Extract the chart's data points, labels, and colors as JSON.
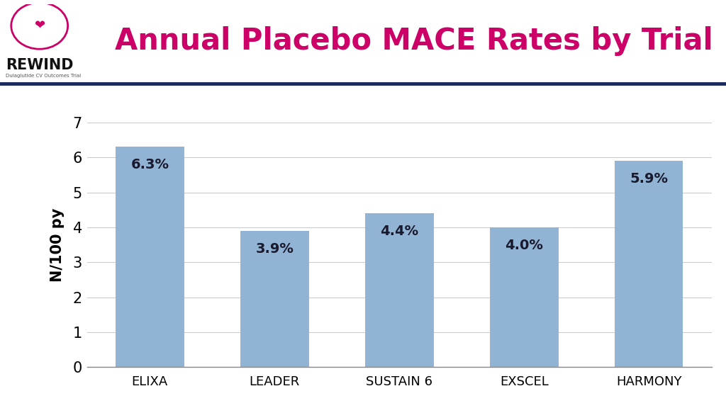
{
  "title": "Annual Placebo MACE Rates by Trial",
  "title_color": "#cc0066",
  "ylabel": "N/100 py",
  "categories": [
    "ELIXA",
    "LEADER",
    "SUSTAIN 6",
    "EXSCEL",
    "HARMONY"
  ],
  "values": [
    6.3,
    3.9,
    4.4,
    4.0,
    5.9
  ],
  "labels": [
    "6.3%",
    "3.9%",
    "4.4%",
    "4.0%",
    "5.9%"
  ],
  "bar_color": "#92B4D4",
  "ylim": [
    0,
    7
  ],
  "yticks": [
    0,
    1,
    2,
    3,
    4,
    5,
    6,
    7
  ],
  "background_color": "#ffffff",
  "grid_color": "#cccccc",
  "label_color": "#1a1a2e",
  "title_fontsize": 30,
  "axis_label_fontsize": 15,
  "tick_fontsize": 15,
  "bar_label_fontsize": 14,
  "xlabel_fontsize": 13,
  "separator_color": "#1a2a5e",
  "separator_linewidth": 3.5,
  "rewind_text_color": "#111111",
  "subtitle_text": "Dulaglutide CV Outcomes Trial",
  "subtitle_color": "#555555"
}
